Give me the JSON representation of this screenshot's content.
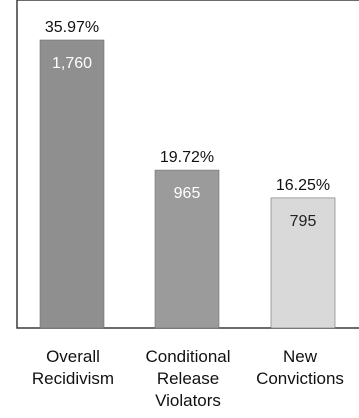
{
  "chart_data": {
    "type": "bar",
    "title": "",
    "xlabel": "",
    "ylabel": "",
    "ylim": [
      0,
      2000
    ],
    "grid": false,
    "legend": "none",
    "categories": [
      [
        "Overall",
        "Recidivism"
      ],
      [
        "Conditional",
        "Release",
        "Violators"
      ],
      [
        "New",
        "Convictions"
      ]
    ],
    "values": [
      1760,
      965,
      795
    ],
    "value_labels": [
      "1,760",
      "965",
      "795"
    ],
    "percent_labels": [
      "35.97%",
      "19.72%",
      "16.25%"
    ],
    "colors": [
      "#8f8f8f",
      "#9b9b9b",
      "#d9d9d9"
    ],
    "value_label_colors": [
      "#ffffff",
      "#ffffff",
      "#222222"
    ]
  }
}
